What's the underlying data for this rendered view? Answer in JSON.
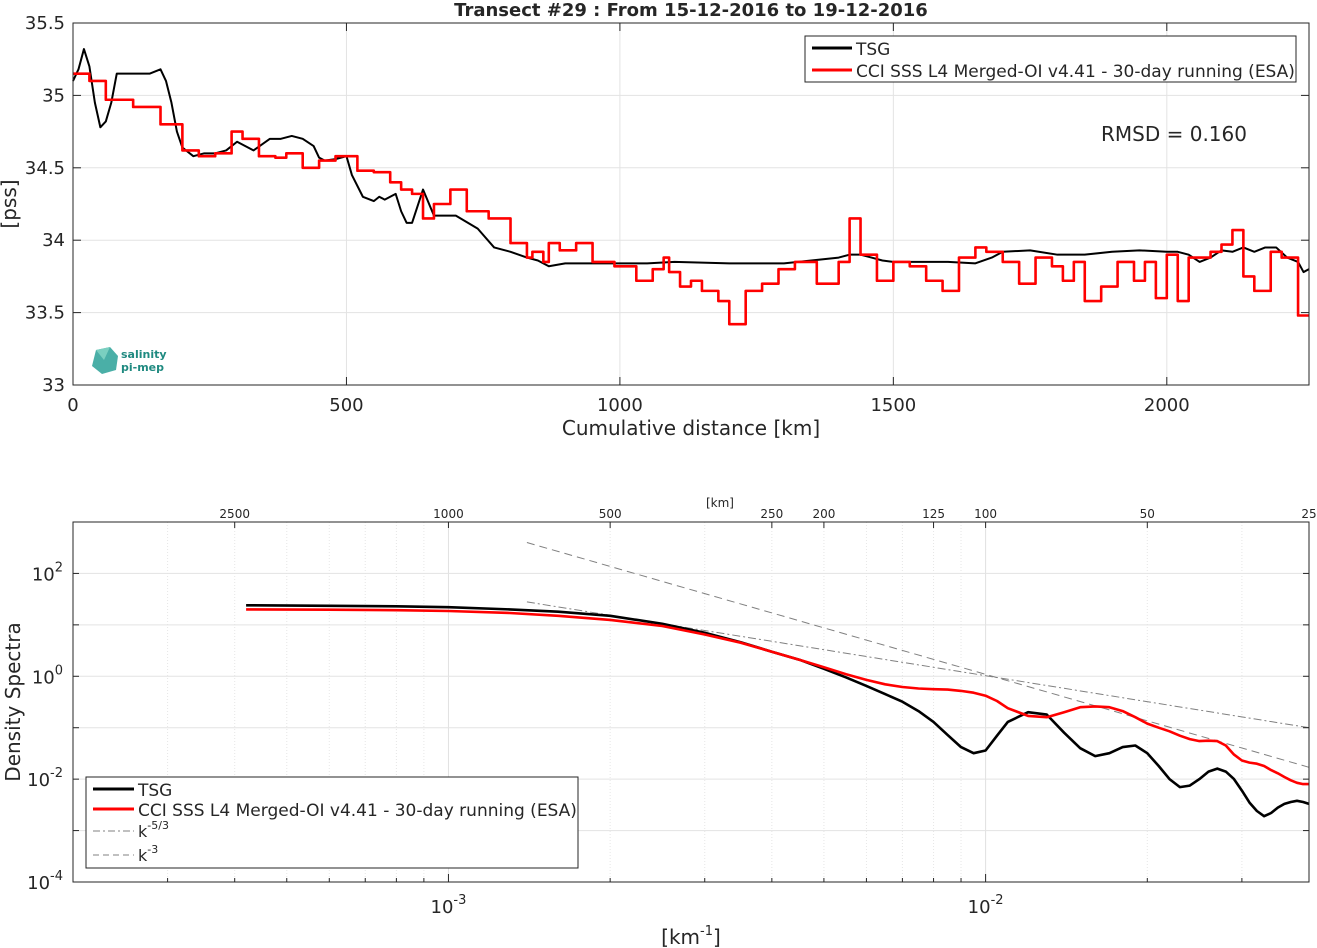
{
  "chart_data": [
    {
      "type": "line",
      "title": "Transect #29 : From 15-12-2016 to 19-12-2016",
      "xlabel": "Cumulative distance [km]",
      "ylabel": "[pss]",
      "xlim": [
        0,
        2260
      ],
      "ylim": [
        33,
        35.5
      ],
      "xticks": [
        0,
        500,
        1000,
        1500,
        2000
      ],
      "yticks": [
        33,
        33.5,
        34,
        34.5,
        35,
        35.5
      ],
      "xtick_labels": [
        "0",
        "500",
        "1000",
        "1500",
        "2000"
      ],
      "ytick_labels": [
        "33",
        "33.5",
        "34",
        "34.5",
        "35",
        "35.5"
      ],
      "grid": true,
      "legend_position": "top-right",
      "annotation": "RMSD = 0.160",
      "logo_text": [
        "salinity",
        "pi-mep"
      ],
      "series": [
        {
          "name": "TSG",
          "color": "#000000",
          "x": [
            0,
            10,
            20,
            30,
            40,
            50,
            60,
            70,
            80,
            100,
            120,
            140,
            160,
            170,
            180,
            190,
            200,
            220,
            240,
            260,
            280,
            300,
            330,
            360,
            380,
            400,
            420,
            440,
            450,
            460,
            480,
            500,
            510,
            530,
            550,
            560,
            570,
            590,
            600,
            610,
            620,
            640,
            660,
            700,
            740,
            770,
            800,
            830,
            850,
            870,
            900,
            950,
            1000,
            1050,
            1100,
            1200,
            1300,
            1400,
            1420,
            1440,
            1460,
            1480,
            1500,
            1600,
            1650,
            1680,
            1700,
            1750,
            1800,
            1850,
            1900,
            1950,
            2000,
            2020,
            2040,
            2060,
            2080,
            2100,
            2120,
            2140,
            2160,
            2180,
            2200,
            2220,
            2240,
            2250,
            2260
          ],
          "y": [
            35.1,
            35.18,
            35.32,
            35.2,
            34.95,
            34.78,
            34.82,
            34.95,
            35.15,
            35.15,
            35.15,
            35.15,
            35.18,
            35.1,
            34.95,
            34.75,
            34.64,
            34.58,
            34.6,
            34.6,
            34.62,
            34.68,
            34.62,
            34.7,
            34.7,
            34.72,
            34.7,
            34.65,
            34.57,
            34.55,
            34.56,
            34.58,
            34.45,
            34.3,
            34.27,
            34.3,
            34.28,
            34.32,
            34.2,
            34.12,
            34.12,
            34.35,
            34.17,
            34.17,
            34.08,
            33.95,
            33.92,
            33.88,
            33.86,
            33.82,
            33.84,
            33.84,
            33.84,
            33.84,
            33.85,
            33.84,
            33.84,
            33.88,
            33.9,
            33.9,
            33.88,
            33.86,
            33.85,
            33.85,
            33.84,
            33.88,
            33.92,
            33.93,
            33.9,
            33.9,
            33.92,
            33.93,
            33.92,
            33.92,
            33.9,
            33.85,
            33.88,
            33.93,
            33.92,
            33.95,
            33.92,
            33.95,
            33.95,
            33.88,
            33.85,
            33.78,
            33.8
          ]
        },
        {
          "name": "CCI SSS L4 Merged-OI v4.41 - 30-day running (ESA)",
          "color": "#ff0000",
          "step": true,
          "x": [
            0,
            30,
            60,
            110,
            160,
            200,
            230,
            260,
            290,
            310,
            340,
            370,
            390,
            420,
            450,
            480,
            520,
            550,
            580,
            600,
            620,
            640,
            660,
            690,
            720,
            760,
            800,
            830,
            840,
            860,
            870,
            890,
            920,
            950,
            990,
            1030,
            1060,
            1080,
            1090,
            1110,
            1130,
            1150,
            1180,
            1200,
            1230,
            1260,
            1290,
            1320,
            1360,
            1400,
            1420,
            1440,
            1470,
            1500,
            1530,
            1560,
            1590,
            1620,
            1650,
            1670,
            1700,
            1730,
            1760,
            1790,
            1810,
            1830,
            1850,
            1880,
            1910,
            1940,
            1960,
            1980,
            2000,
            2020,
            2040,
            2060,
            2080,
            2100,
            2120,
            2140,
            2160,
            2190,
            2210,
            2240,
            2260
          ],
          "y": [
            35.15,
            35.1,
            34.97,
            34.92,
            34.8,
            34.62,
            34.58,
            34.6,
            34.75,
            34.7,
            34.58,
            34.57,
            34.6,
            34.5,
            34.55,
            34.58,
            34.48,
            34.47,
            34.4,
            34.35,
            34.32,
            34.15,
            34.25,
            34.35,
            34.2,
            34.15,
            33.98,
            33.88,
            33.92,
            33.85,
            33.98,
            33.93,
            33.98,
            33.85,
            33.82,
            33.72,
            33.8,
            33.88,
            33.78,
            33.68,
            33.72,
            33.65,
            33.58,
            33.42,
            33.65,
            33.7,
            33.8,
            33.85,
            33.7,
            33.85,
            34.15,
            33.9,
            33.72,
            33.85,
            33.82,
            33.72,
            33.65,
            33.88,
            33.95,
            33.92,
            33.85,
            33.7,
            33.88,
            33.82,
            33.72,
            33.85,
            33.58,
            33.68,
            33.85,
            33.72,
            33.85,
            33.6,
            33.9,
            33.58,
            33.88,
            33.88,
            33.92,
            33.97,
            34.07,
            33.75,
            33.65,
            33.92,
            33.88,
            33.48,
            33.48
          ]
        }
      ]
    },
    {
      "type": "line",
      "xscale": "log",
      "yscale": "log",
      "xlabel": "[km-1]",
      "xlabel_parts": {
        "base": "[km",
        "sup": "-1",
        "tail": "]"
      },
      "ylabel": "Density Spectra",
      "secondary_xlabel": "[km]",
      "xlim": [
        0.0002,
        0.04
      ],
      "ylim": [
        0.0001,
        1000
      ],
      "xticks": [
        0.001,
        0.01
      ],
      "xtick_labels": [
        {
          "base": "10",
          "exp": "-3"
        },
        {
          "base": "10",
          "exp": "-2"
        }
      ],
      "yticks": [
        0.0001,
        0.01,
        1,
        100
      ],
      "ytick_labels": [
        {
          "base": "10",
          "exp": "-4"
        },
        {
          "base": "10",
          "exp": "-2"
        },
        {
          "base": "10",
          "exp": "0"
        },
        {
          "base": "10",
          "exp": "2"
        }
      ],
      "secondary_xticks": [
        2500,
        1000,
        500,
        250,
        200,
        125,
        100,
        50,
        25
      ],
      "secondary_xtick_labels": [
        "2500",
        "1000",
        "500",
        "250",
        "200",
        "125",
        "100",
        "50",
        "25"
      ],
      "grid": true,
      "legend_position": "bottom-left",
      "series": [
        {
          "name": "TSG",
          "color": "#000000",
          "x": [
            0.00042,
            0.0006,
            0.0008,
            0.001,
            0.0013,
            0.0016,
            0.002,
            0.0025,
            0.003,
            0.0035,
            0.004,
            0.0045,
            0.005,
            0.0055,
            0.006,
            0.0065,
            0.007,
            0.0075,
            0.008,
            0.0085,
            0.009,
            0.0095,
            0.01,
            0.0105,
            0.011,
            0.012,
            0.013,
            0.014,
            0.015,
            0.016,
            0.017,
            0.018,
            0.019,
            0.02,
            0.021,
            0.022,
            0.023,
            0.024,
            0.025,
            0.026,
            0.027,
            0.028,
            0.029,
            0.03,
            0.031,
            0.032,
            0.033,
            0.034,
            0.035,
            0.036,
            0.037,
            0.038,
            0.039,
            0.04
          ],
          "y": [
            24,
            23.5,
            23,
            22,
            20,
            18,
            15,
            10.5,
            7,
            4.6,
            3,
            2.1,
            1.4,
            0.95,
            0.65,
            0.45,
            0.32,
            0.21,
            0.13,
            0.072,
            0.042,
            0.032,
            0.036,
            0.07,
            0.13,
            0.2,
            0.18,
            0.08,
            0.04,
            0.028,
            0.032,
            0.042,
            0.045,
            0.032,
            0.018,
            0.01,
            0.007,
            0.0075,
            0.01,
            0.014,
            0.016,
            0.014,
            0.01,
            0.006,
            0.0035,
            0.0024,
            0.0019,
            0.0022,
            0.0028,
            0.0033,
            0.0036,
            0.0038,
            0.0036,
            0.0033
          ]
        },
        {
          "name": "CCI SSS L4 Merged-OI v4.41 - 30-day running (ESA)",
          "color": "#ff0000",
          "x": [
            0.00042,
            0.0006,
            0.0008,
            0.001,
            0.0013,
            0.0016,
            0.002,
            0.0025,
            0.003,
            0.0035,
            0.004,
            0.0045,
            0.005,
            0.0055,
            0.006,
            0.0065,
            0.007,
            0.0075,
            0.008,
            0.0085,
            0.009,
            0.0095,
            0.01,
            0.0105,
            0.011,
            0.012,
            0.013,
            0.014,
            0.015,
            0.016,
            0.017,
            0.018,
            0.019,
            0.02,
            0.021,
            0.022,
            0.023,
            0.024,
            0.025,
            0.026,
            0.027,
            0.028,
            0.029,
            0.03,
            0.031,
            0.032,
            0.033,
            0.034,
            0.035,
            0.036,
            0.037,
            0.038,
            0.039,
            0.04
          ],
          "y": [
            20,
            19.7,
            19.3,
            18.6,
            17,
            15,
            12.5,
            9.5,
            6.5,
            4.5,
            3,
            2.1,
            1.5,
            1.1,
            0.85,
            0.7,
            0.62,
            0.58,
            0.56,
            0.55,
            0.52,
            0.48,
            0.42,
            0.33,
            0.24,
            0.17,
            0.16,
            0.2,
            0.25,
            0.26,
            0.25,
            0.21,
            0.16,
            0.12,
            0.1,
            0.085,
            0.07,
            0.06,
            0.055,
            0.056,
            0.055,
            0.045,
            0.03,
            0.023,
            0.021,
            0.02,
            0.018,
            0.015,
            0.013,
            0.011,
            0.0095,
            0.0085,
            0.008,
            0.008
          ]
        },
        {
          "name": "k-5/3",
          "label_base": "k",
          "label_sup": "-5/3",
          "color": "#808080",
          "dash": "dashdot",
          "x": [
            0.0014,
            0.04
          ],
          "y": [
            28,
            0.1
          ]
        },
        {
          "name": "k-3",
          "label_base": "k",
          "label_sup": "-3",
          "color": "#808080",
          "dash": "dash",
          "x": [
            0.0014,
            0.04
          ],
          "y": [
            400,
            0.017
          ]
        }
      ]
    }
  ]
}
